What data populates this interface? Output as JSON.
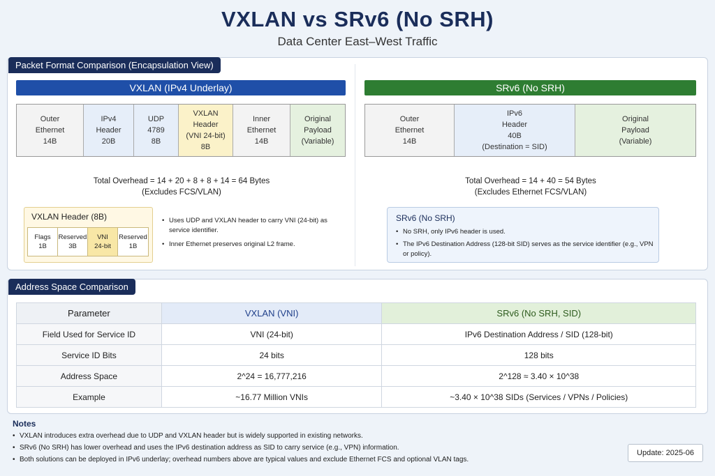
{
  "title": "VXLAN vs SRv6 (No SRH)",
  "subtitle": "Data Center East–West Traffic",
  "packet_section": {
    "tab": "Packet Format Comparison (Encapsulation View)",
    "vxlan": {
      "bar": "VXLAN (IPv4 Underlay)",
      "cells": [
        {
          "lines": [
            "Outer",
            "Ethernet",
            "14B"
          ],
          "color": "#f3f3f3"
        },
        {
          "lines": [
            "IPv4",
            "Header",
            "20B"
          ],
          "color": "#e6eef9"
        },
        {
          "lines": [
            "UDP",
            "4789",
            "8B"
          ],
          "color": "#e6eef9"
        },
        {
          "lines": [
            "VXLAN",
            "Header",
            "(VNI 24-bit)",
            "8B"
          ],
          "color": "#fbf2c9"
        },
        {
          "lines": [
            "Inner",
            "Ethernet",
            "14B"
          ],
          "color": "#f3f3f3"
        },
        {
          "lines": [
            "Original",
            "Payload",
            "(Variable)"
          ],
          "color": "#e5f1df"
        }
      ],
      "overhead_line1": "Total Overhead = 14 + 20 + 8 + 8 + 14 = 64 Bytes",
      "overhead_line2": "(Excludes FCS/VLAN)",
      "header_box": {
        "title": "VXLAN Header (8B)",
        "fields": [
          {
            "name": "Flags",
            "size": "1B"
          },
          {
            "name": "Reserved",
            "size": "3B"
          },
          {
            "name": "VNI",
            "size": "24-bit"
          },
          {
            "name": "Reserved",
            "size": "1B"
          }
        ]
      },
      "bullets": [
        "Uses UDP and VXLAN header to carry VNI (24-bit) as service identifier.",
        "Inner Ethernet preserves original L2 frame."
      ]
    },
    "srv6": {
      "bar": "SRv6 (No SRH)",
      "cells": [
        {
          "lines": [
            "Outer",
            "Ethernet",
            "14B"
          ],
          "color": "#f3f3f3"
        },
        {
          "lines": [
            "IPv6",
            "Header",
            "40B",
            "(Destination = SID)"
          ],
          "color": "#e6eef9"
        },
        {
          "lines": [
            "Original",
            "Payload",
            "(Variable)"
          ],
          "color": "#e5f1df"
        }
      ],
      "overhead_line1": "Total Overhead = 14 + 40 = 54 Bytes",
      "overhead_line2": "(Excludes Ethernet FCS/VLAN)",
      "info_box": {
        "title": "SRv6 (No SRH)",
        "bullets": [
          "No SRH, only IPv6 header is used.",
          "The IPv6 Destination Address (128-bit SID) serves as the service identifier (e.g., VPN or policy)."
        ]
      }
    }
  },
  "address_section": {
    "tab": "Address Space Comparison",
    "headers": [
      "Parameter",
      "VXLAN (VNI)",
      "SRv6 (No SRH, SID)"
    ],
    "rows": [
      [
        "Field Used for Service ID",
        "VNI (24-bit)",
        "IPv6 Destination Address / SID (128-bit)"
      ],
      [
        "Service ID Bits",
        "24 bits",
        "128 bits"
      ],
      [
        "Address Space",
        "2^24 = 16,777,216",
        "2^128 ≈ 3.40 × 10^38"
      ],
      [
        "Example",
        "~16.77 Million VNIs",
        "~3.40 × 10^38 SIDs (Services / VPNs / Policies)"
      ]
    ]
  },
  "notes": {
    "title": "Notes",
    "items": [
      "VXLAN introduces extra overhead due to UDP and VXLAN header but is widely supported in existing networks.",
      "SRv6 (No SRH) has lower overhead and uses the IPv6 destination address as SID to carry service (e.g., VPN) information.",
      "Both solutions can be deployed in IPv6 underlay; overhead numbers above are typical values and exclude Ethernet FCS and optional VLAN tags."
    ]
  },
  "update": "Update: 2025-06"
}
